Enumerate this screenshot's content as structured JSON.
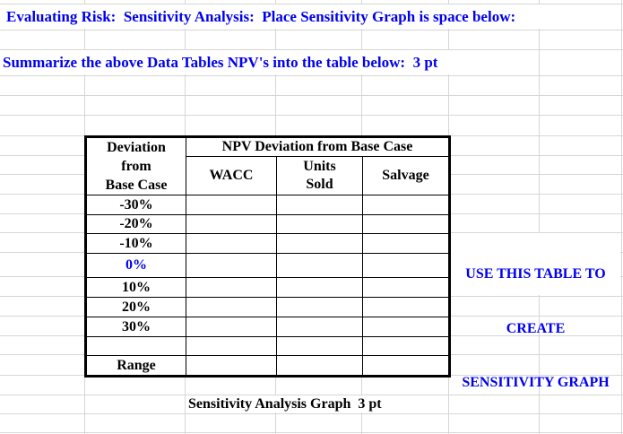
{
  "header": {
    "title": "Evaluating Risk:  Sensitivity Analysis:  Place Sensitivity Graph is space below:",
    "instruction": "Summarize the above Data Tables NPV's into the table below:  3 pt"
  },
  "table": {
    "row_header_lines": [
      "Deviation",
      "from",
      "Base Case"
    ],
    "group_header": "NPV Deviation from Base Case",
    "columns": [
      {
        "line1": "",
        "line2": "WACC"
      },
      {
        "line1": "Units",
        "line2": "Sold"
      },
      {
        "line1": "",
        "line2": "Salvage"
      }
    ],
    "deviation_rows": [
      "-30%",
      "-20%",
      "-10%",
      "0%",
      "10%",
      "20%",
      "30%"
    ],
    "base_case_label": "0%",
    "range_label": "Range"
  },
  "side_note": {
    "line1": "USE THIS TABLE TO",
    "line2": "CREATE",
    "line3": "SENSITIVITY GRAPH"
  },
  "footer": {
    "caption": "Sensitivity Analysis Graph  3 pt"
  },
  "colors": {
    "accent_blue": "#0000ee",
    "cell_fill_peach": "#fce4d6",
    "highlight_yellow": "#ffff99",
    "gridline_gray": "#d6d6d6",
    "border_black": "#000000"
  }
}
